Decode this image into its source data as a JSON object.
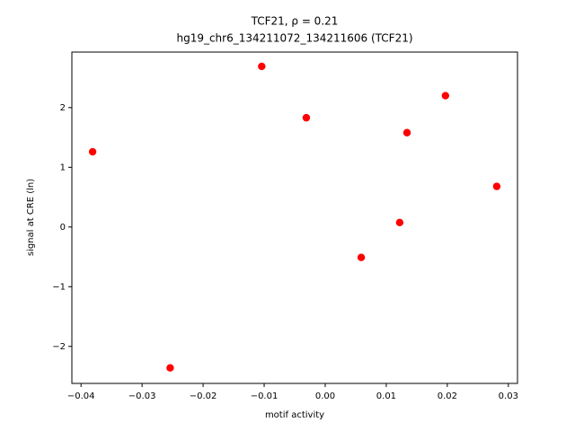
{
  "chart_data": {
    "type": "scatter",
    "title": "TCF21, ρ = 0.21",
    "subtitle": "hg19_chr6_134211072_134211606 (TCF21)",
    "x_label": "motif activity",
    "y_label": "signal at CRE (ln)",
    "color": "#ff0000",
    "x": [
      -0.0381,
      -0.0254,
      -0.0104,
      -0.0031,
      0.0059,
      0.0122,
      0.0134,
      0.0197,
      0.0281
    ],
    "values": [
      1.26,
      -2.36,
      2.69,
      1.83,
      -0.51,
      0.075,
      1.58,
      2.2,
      0.68
    ],
    "xlim": [
      -0.0415,
      0.0315
    ],
    "ylim": [
      -2.62,
      2.93
    ],
    "xticks": [
      {
        "value": -0.04,
        "label": "−0.04"
      },
      {
        "value": -0.03,
        "label": "−0.03"
      },
      {
        "value": -0.02,
        "label": "−0.02"
      },
      {
        "value": -0.01,
        "label": "−0.01"
      },
      {
        "value": 0,
        "label": "0.00"
      },
      {
        "value": 0.01,
        "label": "0.01"
      },
      {
        "value": 0.02,
        "label": "0.02"
      },
      {
        "value": 0.03,
        "label": "0.03"
      }
    ],
    "yticks": [
      {
        "value": -2,
        "label": "−2"
      },
      {
        "value": -1,
        "label": "−1"
      },
      0,
      1,
      2
    ]
  }
}
